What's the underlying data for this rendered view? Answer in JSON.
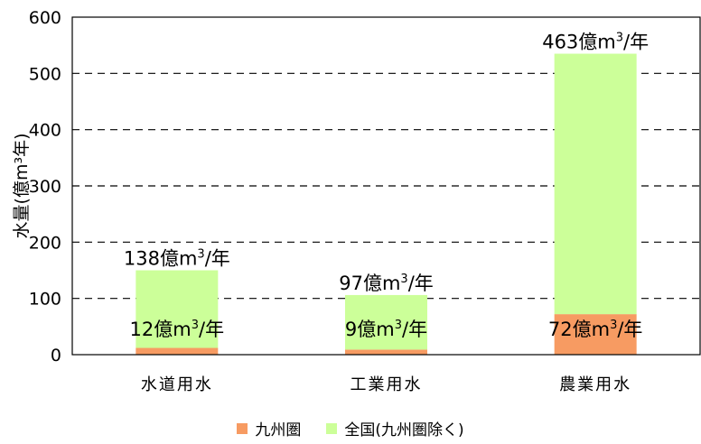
{
  "chart_data": {
    "type": "bar",
    "stacked": true,
    "categories": [
      "水道用水",
      "工業用水",
      "農業用水"
    ],
    "series": [
      {
        "name": "九州圏",
        "values": [
          12,
          9,
          72
        ],
        "color": "#F79B62",
        "labels": [
          "12億m³/年",
          "9億m³/年",
          "72億m³/年"
        ]
      },
      {
        "name": "全国(九州圏除く)",
        "values": [
          138,
          97,
          463
        ],
        "color": "#CCFF99",
        "labels": [
          "138億m³/年",
          "97億m³/年",
          "463億m³/年"
        ]
      }
    ],
    "ylabel": "水量(億m³年)",
    "ylim": [
      0,
      600
    ],
    "yticks": [
      0,
      100,
      200,
      300,
      400,
      500,
      600
    ],
    "grid": "dashed-horizontal",
    "legend_position": "bottom"
  }
}
